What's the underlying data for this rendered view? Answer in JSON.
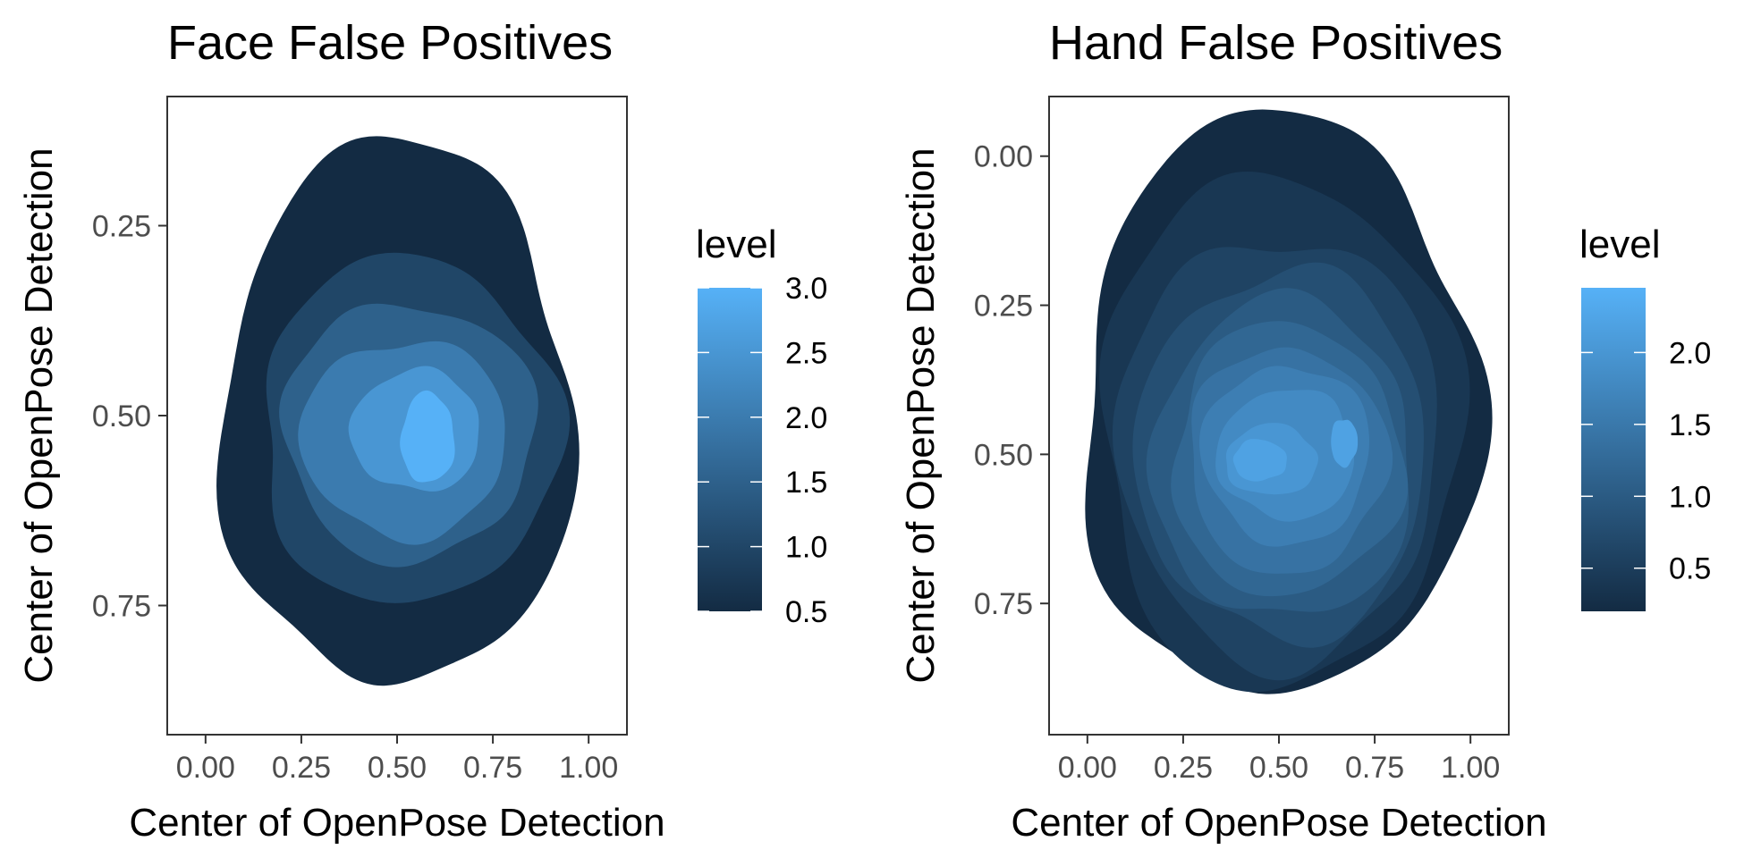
{
  "chart_data": [
    {
      "type": "density-contour",
      "title": "Face False Positives",
      "xlabel": "Center of OpenPose Detection",
      "ylabel": "Center of OpenPose Detection",
      "xlim": [
        -0.1,
        1.1
      ],
      "ylim": [
        0.08,
        0.92
      ],
      "y_reversed": true,
      "x_ticks": [
        "0.00",
        "0.25",
        "0.50",
        "0.75",
        "1.00"
      ],
      "x_tick_values": [
        0,
        0.25,
        0.5,
        0.75,
        1.0
      ],
      "y_ticks": [
        "0.25",
        "0.50",
        "0.75"
      ],
      "y_tick_values": [
        0.25,
        0.5,
        0.75
      ],
      "legend": {
        "title": "level",
        "labels": [
          "3.0",
          "2.5",
          "2.0",
          "1.5",
          "1.0",
          "0.5"
        ],
        "values": [
          3.0,
          2.5,
          2.0,
          1.5,
          1.0,
          0.5
        ],
        "min": 0.5,
        "max": 3.0
      },
      "contours": [
        {
          "level": 0.5,
          "cx": 0.5,
          "cy": 0.5,
          "rx": 0.46,
          "ry": 0.36
        },
        {
          "level": 1.0,
          "cx": 0.53,
          "cy": 0.52,
          "rx": 0.39,
          "ry": 0.23
        },
        {
          "level": 1.5,
          "cx": 0.53,
          "cy": 0.52,
          "rx": 0.33,
          "ry": 0.17
        },
        {
          "level": 2.0,
          "cx": 0.52,
          "cy": 0.53,
          "rx": 0.27,
          "ry": 0.13
        },
        {
          "level": 2.5,
          "cx": 0.55,
          "cy": 0.52,
          "rx": 0.17,
          "ry": 0.08
        },
        {
          "level": 3.0,
          "cx": 0.58,
          "cy": 0.53,
          "rx": 0.07,
          "ry": 0.06
        }
      ]
    },
    {
      "type": "density-contour",
      "title": "Hand False Positives",
      "xlabel": "Center of OpenPose Detection",
      "ylabel": "Center of OpenPose Detection",
      "xlim": [
        -0.1,
        1.1
      ],
      "ylim": [
        -0.1,
        0.97
      ],
      "y_reversed": true,
      "x_ticks": [
        "0.00",
        "0.25",
        "0.50",
        "0.75",
        "1.00"
      ],
      "x_tick_values": [
        0,
        0.25,
        0.5,
        0.75,
        1.0
      ],
      "y_ticks": [
        "0.00",
        "0.25",
        "0.50",
        "0.75"
      ],
      "y_tick_values": [
        0,
        0.25,
        0.5,
        0.75
      ],
      "legend": {
        "title": "level",
        "labels": [
          "2.0",
          "1.5",
          "1.0",
          "0.5"
        ],
        "values": [
          2.0,
          1.5,
          1.0,
          0.5
        ],
        "min": 0.2,
        "max": 2.45
      },
      "contours": [
        {
          "level": 0.2,
          "cx": 0.5,
          "cy": 0.42,
          "rx": 0.52,
          "ry": 0.49
        },
        {
          "level": 0.4,
          "cx": 0.5,
          "cy": 0.46,
          "rx": 0.47,
          "ry": 0.43
        },
        {
          "level": 0.6,
          "cx": 0.5,
          "cy": 0.49,
          "rx": 0.42,
          "ry": 0.36
        },
        {
          "level": 0.8,
          "cx": 0.51,
          "cy": 0.5,
          "rx": 0.38,
          "ry": 0.31
        },
        {
          "level": 1.0,
          "cx": 0.51,
          "cy": 0.51,
          "rx": 0.34,
          "ry": 0.27
        },
        {
          "level": 1.2,
          "cx": 0.52,
          "cy": 0.51,
          "rx": 0.3,
          "ry": 0.23
        },
        {
          "level": 1.4,
          "cx": 0.52,
          "cy": 0.51,
          "rx": 0.26,
          "ry": 0.19
        },
        {
          "level": 1.6,
          "cx": 0.52,
          "cy": 0.5,
          "rx": 0.22,
          "ry": 0.15
        },
        {
          "level": 1.8,
          "cx": 0.52,
          "cy": 0.5,
          "rx": 0.18,
          "ry": 0.11
        },
        {
          "level": 2.0,
          "cx": 0.48,
          "cy": 0.51,
          "rx": 0.12,
          "ry": 0.06
        },
        {
          "level": 2.2,
          "cx": 0.45,
          "cy": 0.51,
          "rx": 0.07,
          "ry": 0.035
        },
        {
          "level": 2.2,
          "cx": 0.67,
          "cy": 0.48,
          "rx": 0.035,
          "ry": 0.04
        }
      ]
    }
  ]
}
